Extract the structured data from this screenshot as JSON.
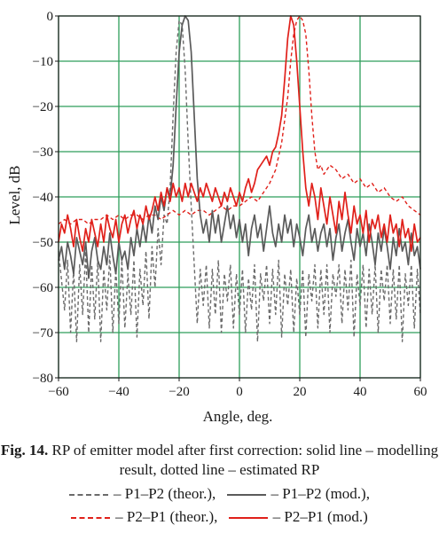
{
  "chart_data": {
    "type": "line",
    "xlabel": "Angle, deg.",
    "ylabel": "Level, dB",
    "xlim": [
      -60,
      60
    ],
    "ylim": [
      -80,
      0
    ],
    "xticks": [
      -60,
      -40,
      -20,
      0,
      20,
      40,
      60
    ],
    "yticks": [
      0,
      -10,
      -20,
      -30,
      -40,
      -50,
      -60,
      -70,
      -80
    ],
    "xtick_labels": [
      "−60",
      "−40",
      "−20",
      "0",
      "20",
      "40",
      "60"
    ],
    "ytick_labels": [
      "0",
      "−10",
      "−20",
      "−30",
      "−40",
      "−50",
      "−60",
      "−70",
      "−80"
    ],
    "grid": true,
    "grid_color": "#2e9e5b",
    "series": [
      {
        "name": "P1–P2 (theor.)",
        "color": "#6b6b6b",
        "style": "dashed",
        "x": [
          -60,
          -58,
          -57,
          -56,
          -55,
          -54,
          -53,
          -52,
          -51,
          -50,
          -49,
          -48,
          -47,
          -46,
          -45,
          -44,
          -43,
          -42,
          -41,
          -40,
          -39,
          -38,
          -37,
          -36,
          -35,
          -34,
          -33,
          -32,
          -31,
          -30,
          -29,
          -28,
          -27,
          -26,
          -25,
          -24,
          -23,
          -22,
          -21,
          -20,
          -19,
          -18,
          -17,
          -16,
          -15,
          -14,
          -13,
          -12,
          -11,
          -10,
          -9,
          -8,
          -7,
          -6,
          -5,
          -4,
          -3,
          -2,
          -1,
          0,
          1,
          2,
          3,
          4,
          5,
          6,
          7,
          8,
          9,
          10,
          11,
          12,
          13,
          14,
          15,
          16,
          17,
          18,
          19,
          20,
          21,
          22,
          23,
          24,
          25,
          26,
          27,
          28,
          29,
          30,
          31,
          32,
          33,
          34,
          35,
          36,
          37,
          38,
          39,
          40,
          41,
          42,
          43,
          44,
          45,
          46,
          47,
          48,
          49,
          50,
          51,
          52,
          53,
          54,
          55,
          56,
          57,
          58,
          59,
          60
        ],
        "y": [
          -52,
          -65,
          -54,
          -70,
          -56,
          -72,
          -55,
          -66,
          -52,
          -70,
          -55,
          -67,
          -54,
          -72,
          -56,
          -65,
          -53,
          -70,
          -56,
          -68,
          -54,
          -69,
          -57,
          -66,
          -54,
          -71,
          -56,
          -64,
          -52,
          -67,
          -51,
          -60,
          -47,
          -55,
          -44,
          -46,
          -38,
          -22,
          -8,
          -1,
          -2,
          -12,
          -28,
          -42,
          -55,
          -68,
          -56,
          -64,
          -55,
          -69,
          -56,
          -66,
          -54,
          -70,
          -57,
          -63,
          -55,
          -69,
          -57,
          -66,
          -56,
          -70,
          -58,
          -65,
          -55,
          -72,
          -57,
          -63,
          -55,
          -68,
          -56,
          -66,
          -54,
          -71,
          -57,
          -64,
          -56,
          -70,
          -58,
          -66,
          -56,
          -71,
          -57,
          -63,
          -55,
          -69,
          -56,
          -66,
          -55,
          -70,
          -57,
          -62,
          -55,
          -68,
          -56,
          -65,
          -54,
          -71,
          -57,
          -64,
          -55,
          -69,
          -56,
          -66,
          -55,
          -70,
          -56,
          -63,
          -55,
          -68,
          -56,
          -67,
          -55,
          -72,
          -57,
          -64,
          -55,
          -69,
          -56,
          -66
        ]
      },
      {
        "name": "P1–P2 (mod.)",
        "color": "#5a5a5a",
        "style": "solid",
        "x": [
          -60,
          -59,
          -58,
          -57,
          -56,
          -55,
          -54,
          -53,
          -52,
          -51,
          -50,
          -49,
          -48,
          -47,
          -46,
          -45,
          -44,
          -43,
          -42,
          -41,
          -40,
          -39,
          -38,
          -37,
          -36,
          -35,
          -34,
          -33,
          -32,
          -31,
          -30,
          -29,
          -28,
          -27,
          -26,
          -25,
          -24,
          -23,
          -22,
          -21,
          -20,
          -19,
          -18,
          -17,
          -16,
          -15,
          -14,
          -13,
          -12,
          -11,
          -10,
          -9,
          -8,
          -7,
          -6,
          -5,
          -4,
          -3,
          -2,
          -1,
          0,
          1,
          2,
          3,
          4,
          5,
          6,
          7,
          8,
          9,
          10,
          11,
          12,
          13,
          14,
          15,
          16,
          17,
          18,
          19,
          20,
          21,
          22,
          23,
          24,
          25,
          26,
          27,
          28,
          29,
          30,
          31,
          32,
          33,
          34,
          35,
          36,
          37,
          38,
          39,
          40,
          41,
          42,
          43,
          44,
          45,
          46,
          47,
          48,
          49,
          50,
          51,
          52,
          53,
          54,
          55,
          56,
          57,
          58,
          59,
          60
        ],
        "y": [
          -54,
          -51,
          -56,
          -50,
          -53,
          -57,
          -49,
          -52,
          -55,
          -50,
          -58,
          -52,
          -49,
          -54,
          -56,
          -51,
          -55,
          -48,
          -53,
          -57,
          -50,
          -54,
          -52,
          -56,
          -49,
          -53,
          -47,
          -51,
          -46,
          -50,
          -44,
          -48,
          -42,
          -45,
          -40,
          -43,
          -38,
          -40,
          -33,
          -20,
          -8,
          -2,
          0,
          -1,
          -8,
          -22,
          -36,
          -44,
          -48,
          -45,
          -50,
          -43,
          -48,
          -44,
          -50,
          -46,
          -42,
          -47,
          -44,
          -49,
          -45,
          -50,
          -46,
          -53,
          -47,
          -44,
          -49,
          -46,
          -52,
          -47,
          -42,
          -48,
          -51,
          -46,
          -50,
          -44,
          -48,
          -45,
          -51,
          -46,
          -49,
          -53,
          -47,
          -44,
          -50,
          -47,
          -52,
          -48,
          -46,
          -51,
          -47,
          -54,
          -49,
          -46,
          -52,
          -48,
          -45,
          -50,
          -54,
          -47,
          -51,
          -48,
          -53,
          -46,
          -50,
          -55,
          -48,
          -52,
          -47,
          -51,
          -56,
          -49,
          -53,
          -47,
          -52,
          -50,
          -55,
          -48,
          -53,
          -51,
          -56
        ]
      },
      {
        "name": "P2–P1 (theor.)",
        "color": "#e0201a",
        "style": "dashed",
        "x": [
          -60,
          -58,
          -56,
          -54,
          -52,
          -50,
          -48,
          -46,
          -44,
          -42,
          -40,
          -38,
          -36,
          -34,
          -32,
          -30,
          -28,
          -26,
          -24,
          -22,
          -20,
          -18,
          -16,
          -14,
          -12,
          -10,
          -8,
          -6,
          -4,
          -2,
          0,
          2,
          4,
          6,
          8,
          10,
          12,
          14,
          16,
          17,
          18,
          19,
          20,
          21,
          22,
          23,
          24,
          25,
          26,
          27,
          28,
          29,
          30,
          32,
          34,
          36,
          38,
          40,
          42,
          44,
          46,
          48,
          50,
          52,
          54,
          56,
          58,
          60
        ],
        "y": [
          -46,
          -45,
          -46,
          -45,
          -45,
          -46,
          -45,
          -45,
          -44,
          -45,
          -44,
          -45,
          -44,
          -44,
          -45,
          -44,
          -44,
          -45,
          -44,
          -43,
          -44,
          -43,
          -44,
          -43,
          -43,
          -44,
          -43,
          -42,
          -43,
          -42,
          -42,
          -41,
          -40,
          -41,
          -39,
          -37,
          -34,
          -28,
          -18,
          -10,
          -4,
          -1,
          0,
          -1,
          -4,
          -12,
          -22,
          -30,
          -34,
          -33,
          -35,
          -34,
          -33,
          -34,
          -36,
          -35,
          -37,
          -36,
          -38,
          -37,
          -39,
          -38,
          -40,
          -41,
          -40,
          -42,
          -43,
          -44
        ]
      },
      {
        "name": "P2–P1 (mod.)",
        "color": "#e0201a",
        "style": "solid",
        "x": [
          -60,
          -59,
          -58,
          -57,
          -56,
          -55,
          -54,
          -53,
          -52,
          -51,
          -50,
          -49,
          -48,
          -47,
          -46,
          -45,
          -44,
          -43,
          -42,
          -41,
          -40,
          -39,
          -38,
          -37,
          -36,
          -35,
          -34,
          -33,
          -32,
          -31,
          -30,
          -29,
          -28,
          -27,
          -26,
          -25,
          -24,
          -23,
          -22,
          -21,
          -20,
          -19,
          -18,
          -17,
          -16,
          -15,
          -14,
          -13,
          -12,
          -11,
          -10,
          -9,
          -8,
          -7,
          -6,
          -5,
          -4,
          -3,
          -2,
          -1,
          0,
          1,
          2,
          3,
          4,
          5,
          6,
          7,
          8,
          9,
          10,
          11,
          12,
          13,
          14,
          15,
          16,
          17,
          18,
          19,
          20,
          21,
          22,
          23,
          24,
          25,
          26,
          27,
          28,
          29,
          30,
          31,
          32,
          33,
          34,
          35,
          36,
          37,
          38,
          39,
          40,
          41,
          42,
          43,
          44,
          45,
          46,
          47,
          48,
          49,
          50,
          51,
          52,
          53,
          54,
          55,
          56,
          57,
          58,
          59,
          60
        ],
        "y": [
          -50,
          -46,
          -48,
          -44,
          -47,
          -51,
          -45,
          -49,
          -52,
          -47,
          -50,
          -45,
          -48,
          -51,
          -46,
          -50,
          -44,
          -47,
          -49,
          -45,
          -50,
          -46,
          -44,
          -48,
          -45,
          -43,
          -47,
          -44,
          -46,
          -42,
          -45,
          -43,
          -40,
          -43,
          -39,
          -42,
          -38,
          -41,
          -37,
          -40,
          -38,
          -41,
          -37,
          -40,
          -37,
          -39,
          -41,
          -38,
          -40,
          -37,
          -39,
          -41,
          -38,
          -40,
          -42,
          -39,
          -41,
          -38,
          -40,
          -42,
          -39,
          -41,
          -38,
          -36,
          -39,
          -37,
          -34,
          -33,
          -32,
          -31,
          -33,
          -30,
          -29,
          -26,
          -22,
          -14,
          -5,
          0,
          -2,
          -10,
          -20,
          -30,
          -38,
          -42,
          -37,
          -40,
          -45,
          -38,
          -42,
          -46,
          -40,
          -44,
          -48,
          -41,
          -45,
          -39,
          -44,
          -48,
          -42,
          -46,
          -44,
          -48,
          -43,
          -50,
          -45,
          -47,
          -44,
          -49,
          -46,
          -50,
          -44,
          -48,
          -46,
          -51,
          -45,
          -49,
          -47,
          -52,
          -46,
          -50,
          -49
        ]
      }
    ]
  },
  "caption": {
    "fig_label": "Fig. 14.",
    "text": " RP of emitter model after first correction: solid line – modelling result, dotted line – estimated RP"
  },
  "legend": [
    {
      "label": "– P1–P2 (theor.),",
      "color": "#6b6b6b",
      "style": "dashed"
    },
    {
      "label": "– P1–P2 (mod.),",
      "color": "#5a5a5a",
      "style": "solid"
    },
    {
      "label": "– P2–P1 (theor.),",
      "color": "#e0201a",
      "style": "dashed"
    },
    {
      "label": "– P2–P1 (mod.)",
      "color": "#e0201a",
      "style": "solid"
    }
  ]
}
